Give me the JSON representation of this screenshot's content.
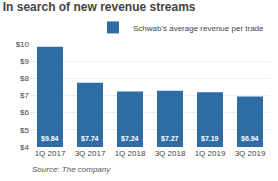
{
  "chart_data": {
    "type": "bar",
    "title": "In search of new revenue streams",
    "categories": [
      "1Q 2017",
      "3Q 2017",
      "1Q 2018",
      "3Q 2018",
      "1Q 2019",
      "3Q 2019"
    ],
    "series": [
      {
        "name": "Schwab's average revenue per trade",
        "color": "#2e6da4",
        "values": [
          9.84,
          7.74,
          7.24,
          7.27,
          7.19,
          6.94
        ],
        "value_labels": [
          "$9.84",
          "$7.74",
          "$7.24",
          "$7.27",
          "$7.19",
          "$6.94"
        ]
      }
    ],
    "ylim": [
      4,
      10
    ],
    "yticks": [
      {
        "value": 4,
        "label": "$4"
      },
      {
        "value": 5,
        "label": "$5"
      },
      {
        "value": 6,
        "label": "$6"
      },
      {
        "value": 7,
        "label": "$7"
      },
      {
        "value": 8,
        "label": "$8"
      },
      {
        "value": 9,
        "label": "$9"
      },
      {
        "value": 10,
        "label": "$10"
      }
    ],
    "grid": true,
    "data_labels": true,
    "legend": "top",
    "annotations": [
      "Source: The company"
    ]
  }
}
